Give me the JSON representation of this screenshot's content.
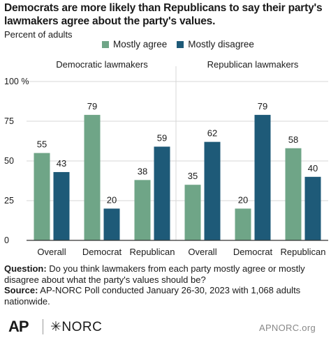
{
  "title": "Democrats are more likely than Republicans to say their party's lawmakers agree about the party's values.",
  "subtitle": "Percent of adults",
  "colors": {
    "agree": "#6fa587",
    "disagree": "#1e5a78",
    "grid": "#d7d7d7",
    "axis": "#333333",
    "text": "#1a1a1a"
  },
  "chart_data": {
    "type": "bar",
    "panels": [
      {
        "title": "Democratic lawmakers",
        "categories": [
          "Overall",
          "Democrat",
          "Republican"
        ],
        "series": [
          {
            "name": "Mostly agree",
            "values": [
              55,
              79,
              38
            ]
          },
          {
            "name": "Mostly disagree",
            "values": [
              43,
              20,
              59
            ]
          }
        ]
      },
      {
        "title": "Republican lawmakers",
        "categories": [
          "Overall",
          "Democrat",
          "Republican"
        ],
        "series": [
          {
            "name": "Mostly agree",
            "values": [
              35,
              20,
              58
            ]
          },
          {
            "name": "Mostly disagree",
            "values": [
              62,
              79,
              40
            ]
          }
        ]
      }
    ],
    "ylim": [
      0,
      100
    ],
    "yticks": [
      "0",
      "25",
      "50",
      "75",
      "100 %"
    ],
    "legend": "top",
    "grid": true
  },
  "footer": {
    "question_label": "Question:",
    "question": " Do you think lawmakers from each party mostly agree or mostly disagree about what the party's values should be?",
    "source_label": "Source:",
    "source": " AP-NORC Poll conducted January 26-30, 2023 with 1,068 adults nationwide."
  },
  "logos": {
    "ap": "AP",
    "norc": "✳NORC",
    "url": "APNORC.org"
  }
}
